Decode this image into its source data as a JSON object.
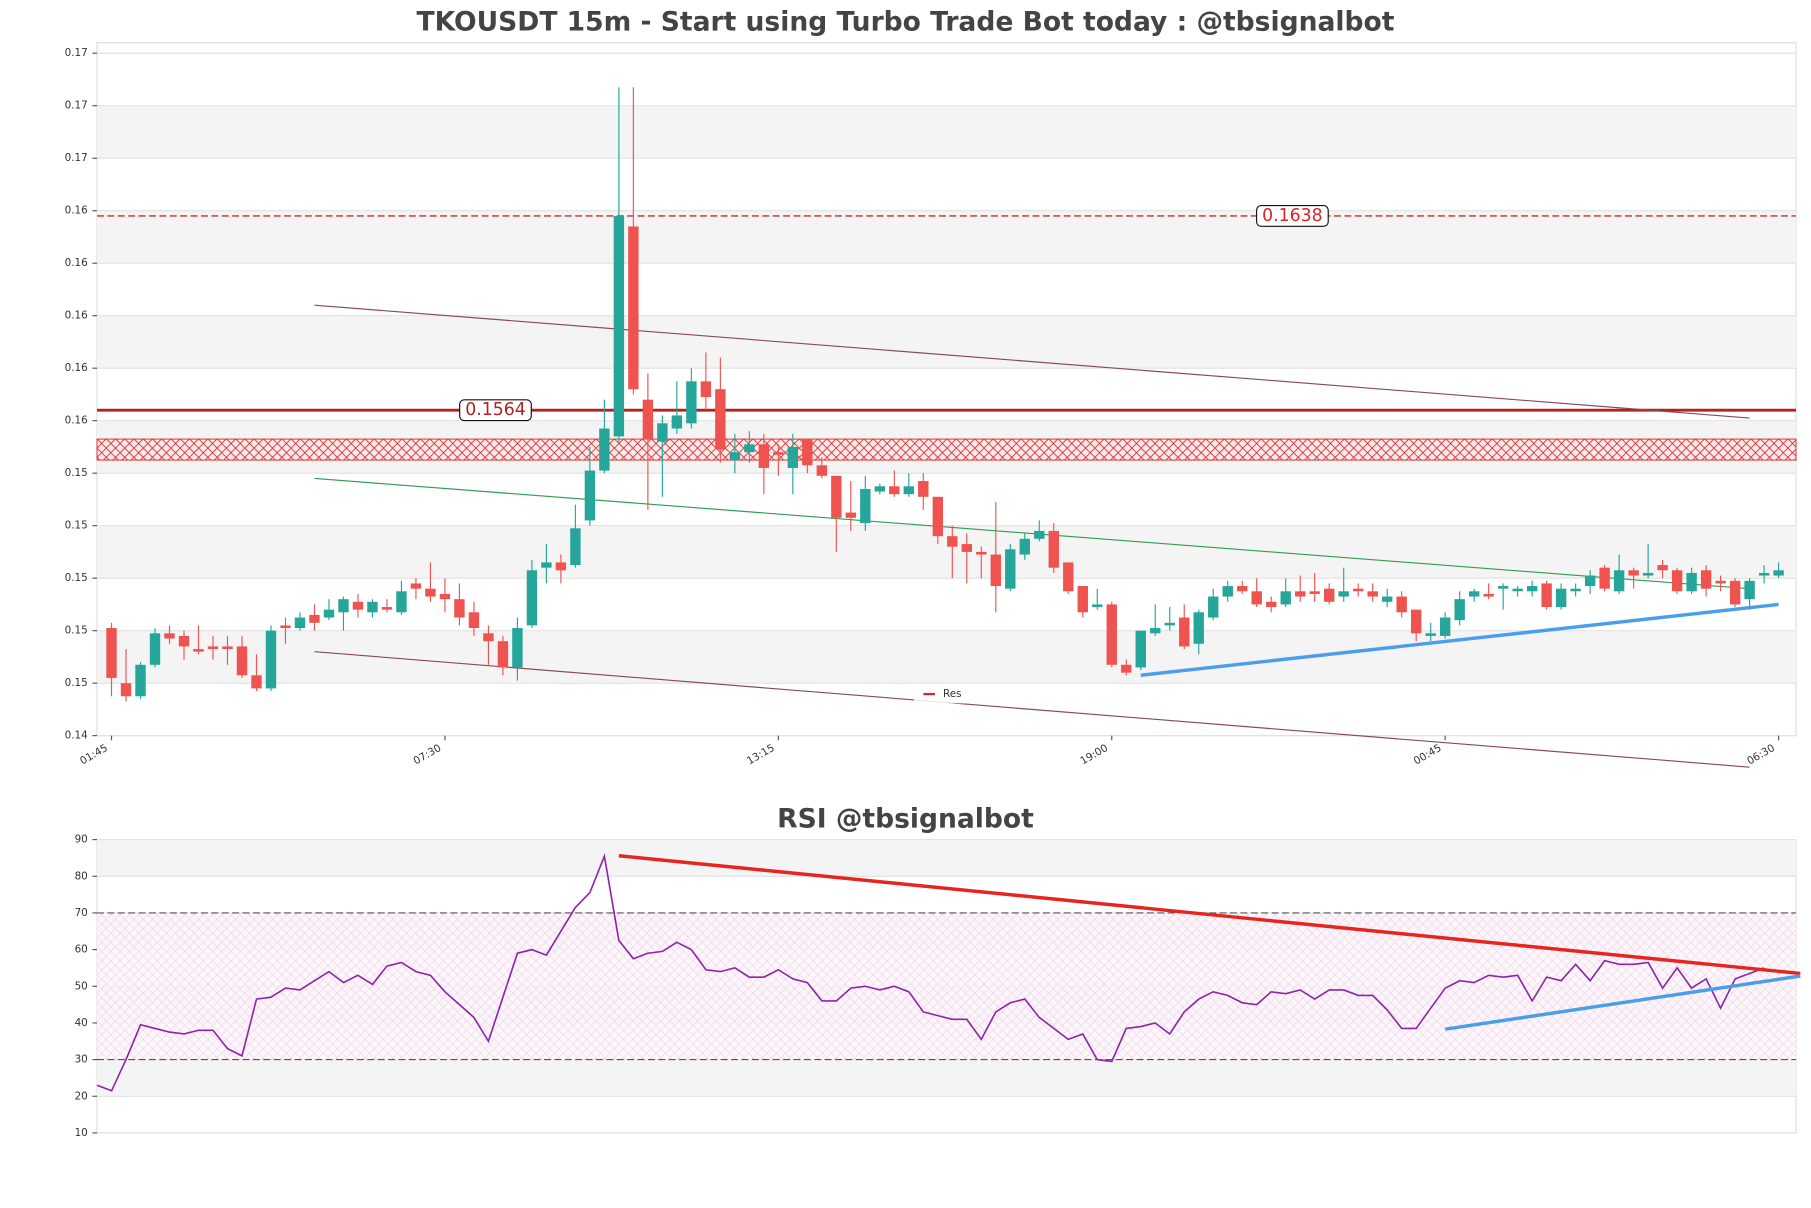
{
  "chart_data": [
    {
      "type": "candlestick",
      "title": "TKOUSDT 15m - Start using Turbo Trade Bot today : @tbsignalbot",
      "categories": [
        "01:45",
        null,
        null,
        null,
        null,
        null,
        null,
        null,
        null,
        null,
        null,
        null,
        null,
        null,
        null,
        null,
        null,
        null,
        null,
        null,
        null,
        null,
        null,
        "07:30",
        null,
        null,
        null,
        null,
        null,
        null,
        null,
        null,
        null,
        null,
        null,
        null,
        null,
        null,
        null,
        null,
        null,
        null,
        null,
        null,
        null,
        null,
        "13:15",
        null,
        null,
        null,
        null,
        null,
        null,
        null,
        null,
        null,
        null,
        null,
        null,
        null,
        null,
        null,
        null,
        null,
        null,
        null,
        null,
        null,
        null,
        "19:00",
        null,
        null,
        null,
        null,
        null,
        null,
        null,
        null,
        null,
        null,
        null,
        null,
        null,
        null,
        null,
        null,
        null,
        null,
        null,
        null,
        null,
        null,
        "00:45",
        null,
        null,
        null,
        null,
        null,
        null,
        null,
        null,
        null,
        null,
        null,
        null,
        null,
        null,
        null,
        null,
        null,
        null,
        null,
        null,
        null,
        null,
        "06:30"
      ],
      "open": [
        0.1481,
        0.146,
        0.1455,
        0.1467,
        0.1479,
        0.1478,
        0.1473,
        0.1474,
        0.1474,
        0.1474,
        0.1463,
        0.1458,
        0.1482,
        0.1481,
        0.1486,
        0.1485,
        0.1487,
        0.1491,
        0.1487,
        0.1489,
        0.1487,
        0.1498,
        0.1496,
        0.1494,
        0.1492,
        0.1487,
        0.1479,
        0.1476,
        0.1466,
        0.1482,
        0.1504,
        0.1506,
        0.1505,
        0.1522,
        0.1541,
        0.1554,
        0.1634,
        0.1568,
        0.1552,
        0.1557,
        0.1559,
        0.1575,
        0.1572,
        0.1545,
        0.1548,
        0.1551,
        0.1548,
        0.1542,
        0.1553,
        0.1543,
        0.1539,
        0.1525,
        0.1521,
        0.1533,
        0.1535,
        0.1532,
        0.1537,
        0.1531,
        0.1516,
        0.1513,
        0.151,
        0.1509,
        0.1496,
        0.1509,
        0.1515,
        0.1518,
        0.1506,
        0.1497,
        0.1489,
        0.149,
        0.1467,
        0.1466,
        0.1479,
        0.1482,
        0.1485,
        0.1475,
        0.1485,
        0.1493,
        0.1497,
        0.1495,
        0.1491,
        0.149,
        0.1495,
        0.1495,
        0.1496,
        0.1493,
        0.1496,
        0.1495,
        0.1491,
        0.1493,
        0.1488,
        0.1478,
        0.1478,
        0.1484,
        0.1493,
        0.1494,
        0.1496,
        0.1495,
        0.1495,
        0.1498,
        0.1489,
        0.1495,
        0.1497,
        0.1504,
        0.1495,
        0.1503,
        0.1501,
        0.1505,
        0.1503,
        0.1495,
        0.1503,
        0.1499,
        0.1499,
        0.1492,
        0.1501,
        0.1501
      ],
      "high": [
        0.1483,
        0.1473,
        0.1468,
        0.1481,
        0.1482,
        0.148,
        0.1482,
        0.1478,
        0.1478,
        0.1478,
        0.1471,
        0.1482,
        0.1485,
        0.1487,
        0.149,
        0.1492,
        0.1493,
        0.1494,
        0.1492,
        0.1492,
        0.1499,
        0.15,
        0.1506,
        0.15,
        0.1498,
        0.1491,
        0.1482,
        0.1478,
        0.1485,
        0.1507,
        0.1513,
        0.1509,
        0.1528,
        0.155,
        0.1568,
        0.1687,
        0.1687,
        0.1578,
        0.1562,
        0.1575,
        0.158,
        0.1586,
        0.1584,
        0.1555,
        0.1556,
        0.1555,
        0.1551,
        0.1555,
        0.1553,
        0.1546,
        0.1539,
        0.1537,
        0.1539,
        0.1536,
        0.1541,
        0.154,
        0.154,
        0.1531,
        0.152,
        0.1517,
        0.1512,
        0.1529,
        0.1513,
        0.1517,
        0.1522,
        0.1521,
        0.1506,
        0.1497,
        0.1496,
        0.1491,
        0.1469,
        0.148,
        0.149,
        0.1489,
        0.149,
        0.1488,
        0.1496,
        0.1499,
        0.1499,
        0.15,
        0.1493,
        0.15,
        0.1501,
        0.1502,
        0.1498,
        0.1504,
        0.1498,
        0.1498,
        0.1496,
        0.1495,
        0.1488,
        0.1483,
        0.1487,
        0.1495,
        0.1496,
        0.1498,
        0.1498,
        0.1497,
        0.1499,
        0.1499,
        0.1498,
        0.1498,
        0.1503,
        0.1505,
        0.1509,
        0.1504,
        0.1513,
        0.1507,
        0.1504,
        0.1504,
        0.1505,
        0.1501,
        0.15,
        0.15,
        0.1505,
        0.1506
      ],
      "low": [
        0.1455,
        0.1453,
        0.1454,
        0.1466,
        0.1475,
        0.1469,
        0.1471,
        0.1469,
        0.1467,
        0.1462,
        0.1457,
        0.1457,
        0.1475,
        0.148,
        0.148,
        0.1484,
        0.148,
        0.1485,
        0.1485,
        0.1487,
        0.1486,
        0.1492,
        0.1491,
        0.1487,
        0.1482,
        0.1478,
        0.1467,
        0.1463,
        0.1461,
        0.1481,
        0.1498,
        0.1498,
        0.1504,
        0.152,
        0.154,
        0.1551,
        0.157,
        0.1526,
        0.1531,
        0.1555,
        0.1557,
        0.1564,
        0.1544,
        0.154,
        0.1544,
        0.1532,
        0.1539,
        0.1532,
        0.154,
        0.1538,
        0.151,
        0.1518,
        0.1518,
        0.1532,
        0.1531,
        0.1531,
        0.1526,
        0.1513,
        0.15,
        0.1498,
        0.15,
        0.1487,
        0.1495,
        0.1507,
        0.1514,
        0.1502,
        0.1494,
        0.1485,
        0.1488,
        0.1466,
        0.1463,
        0.1465,
        0.1478,
        0.148,
        0.1473,
        0.1471,
        0.1484,
        0.1491,
        0.1494,
        0.1489,
        0.1487,
        0.1489,
        0.1491,
        0.1491,
        0.149,
        0.1491,
        0.1493,
        0.1491,
        0.1489,
        0.1485,
        0.1476,
        0.1476,
        0.1477,
        0.1482,
        0.1491,
        0.1492,
        0.1488,
        0.1493,
        0.1493,
        0.1488,
        0.1488,
        0.1493,
        0.1494,
        0.1495,
        0.1494,
        0.1496,
        0.15,
        0.15,
        0.1494,
        0.1494,
        0.1493,
        0.1495,
        0.1489,
        0.1488,
        0.1498,
        0.15
      ],
      "close": [
        0.1462,
        0.1455,
        0.1467,
        0.1479,
        0.1477,
        0.1474,
        0.1472,
        0.1473,
        0.1473,
        0.1463,
        0.1458,
        0.148,
        0.1481,
        0.1485,
        0.1483,
        0.1488,
        0.1492,
        0.1488,
        0.1491,
        0.1488,
        0.1495,
        0.1496,
        0.1493,
        0.1492,
        0.1485,
        0.1481,
        0.1476,
        0.1466,
        0.1481,
        0.1503,
        0.1506,
        0.1503,
        0.1519,
        0.1541,
        0.1557,
        0.1638,
        0.1572,
        0.1553,
        0.1559,
        0.1562,
        0.1575,
        0.1569,
        0.1549,
        0.1548,
        0.1551,
        0.1542,
        0.1547,
        0.155,
        0.1543,
        0.1539,
        0.1523,
        0.1523,
        0.1534,
        0.1535,
        0.1532,
        0.1535,
        0.1531,
        0.1516,
        0.1512,
        0.151,
        0.1509,
        0.1497,
        0.1511,
        0.1515,
        0.1518,
        0.1504,
        0.1495,
        0.1487,
        0.149,
        0.1467,
        0.1464,
        0.148,
        0.1481,
        0.1483,
        0.1474,
        0.1487,
        0.1493,
        0.1497,
        0.1495,
        0.149,
        0.1489,
        0.1495,
        0.1493,
        0.1494,
        0.1491,
        0.1495,
        0.1495,
        0.1493,
        0.1493,
        0.1487,
        0.1479,
        0.1479,
        0.1485,
        0.1492,
        0.1495,
        0.1493,
        0.1497,
        0.1496,
        0.1497,
        0.1489,
        0.1496,
        0.1496,
        0.1501,
        0.1496,
        0.1503,
        0.1501,
        0.1502,
        0.1503,
        0.1495,
        0.1502,
        0.1496,
        0.1498,
        0.149,
        0.1499,
        0.1502,
        0.1503
      ],
      "up_color": "#26a69a",
      "down_color": "#ef5350",
      "ylim": [
        0.144,
        0.1704
      ],
      "yticks": [
        {
          "value": 0.144,
          "label": "0.14"
        },
        {
          "value": 0.146,
          "label": "0.15"
        },
        {
          "value": 0.148,
          "label": "0.15"
        },
        {
          "value": 0.15,
          "label": "0.15"
        },
        {
          "value": 0.152,
          "label": "0.15"
        },
        {
          "value": 0.154,
          "label": "0.15"
        },
        {
          "value": 0.156,
          "label": "0.16"
        },
        {
          "value": 0.158,
          "label": "0.16"
        },
        {
          "value": 0.16,
          "label": "0.16"
        },
        {
          "value": 0.162,
          "label": "0.16"
        },
        {
          "value": 0.164,
          "label": "0.16"
        },
        {
          "value": 0.166,
          "label": "0.17"
        },
        {
          "value": 0.168,
          "label": "0.17"
        },
        {
          "value": 0.17,
          "label": "0.17"
        }
      ],
      "grid": true,
      "levels": [
        {
          "value": 0.1638,
          "style": "dashed",
          "color": "#d62728"
        },
        {
          "value": 0.1564,
          "style": "solid",
          "color": "#b22222"
        }
      ],
      "zone": [
        0.1545,
        0.1553
      ],
      "zone_color": "#d62728",
      "trendlines": [
        {
          "color": "#8b4a55",
          "start": [
            14,
            0.1604
          ],
          "end": [
            113,
            0.1561
          ]
        },
        {
          "color": "#2e9e4f",
          "start": [
            14,
            0.1538
          ],
          "end": [
            113,
            0.1496
          ]
        },
        {
          "color": "#8b4a55",
          "start": [
            14,
            0.1472
          ],
          "end": [
            113,
            0.1428
          ]
        },
        {
          "color": "#4a9fe8",
          "start": [
            71,
            0.1463
          ],
          "end": [
            115,
            0.149
          ],
          "width": 3
        }
      ],
      "legend": {
        "labels": [
          "Res"
        ],
        "color": "#d62728",
        "position": "lower center"
      }
    },
    {
      "type": "line",
      "title": "RSI @tbsignalbot",
      "series": [
        {
          "color": "#8e24aa",
          "values": [
            23,
            21.5,
            30,
            39.5,
            38.5,
            37.5,
            37,
            38,
            38,
            33,
            31,
            46.5,
            47,
            49.5,
            49,
            51.5,
            54,
            51,
            53,
            50.5,
            55.5,
            56.5,
            54,
            53,
            48.5,
            45,
            41.5,
            35,
            47,
            59,
            60,
            58.5,
            65,
            71.5,
            75.5,
            85.5,
            62.5,
            57.5,
            59,
            59.5,
            62,
            60,
            54.5,
            54,
            55,
            52.5,
            52.5,
            54.5,
            52,
            51,
            46,
            46,
            49.5,
            50,
            49,
            50,
            48.5,
            43,
            42,
            41,
            41,
            35.5,
            43,
            45.5,
            46.5,
            41.5,
            38.5,
            35.5,
            37,
            30,
            29.5,
            38.5,
            39,
            40,
            37,
            43,
            46.5,
            48.5,
            47.5,
            45.5,
            45,
            48.5,
            48,
            49,
            46.5,
            49,
            49,
            47.5,
            47.5,
            43.5,
            38.5,
            38.5,
            44,
            49.5,
            51.5,
            51,
            53,
            52.5,
            53,
            46,
            52.5,
            51.5,
            56,
            51.5,
            57,
            56,
            56,
            56.5,
            49.5,
            55,
            49.5,
            52,
            44,
            52,
            53.5,
            55
          ]
        }
      ],
      "ylim": [
        10,
        90
      ],
      "yticks": [
        10,
        20,
        30,
        40,
        50,
        60,
        70,
        80,
        90
      ],
      "grid": true,
      "levels": [
        70,
        30
      ],
      "trendlines": [
        {
          "color": "#e8241f",
          "start": [
            35,
            85.6
          ],
          "end": [
            116.5,
            53.5
          ],
          "width": 3
        },
        {
          "color": "#4a9fe8",
          "start": [
            92,
            38.3
          ],
          "end": [
            116.5,
            52.8
          ],
          "width": 3
        }
      ]
    }
  ]
}
